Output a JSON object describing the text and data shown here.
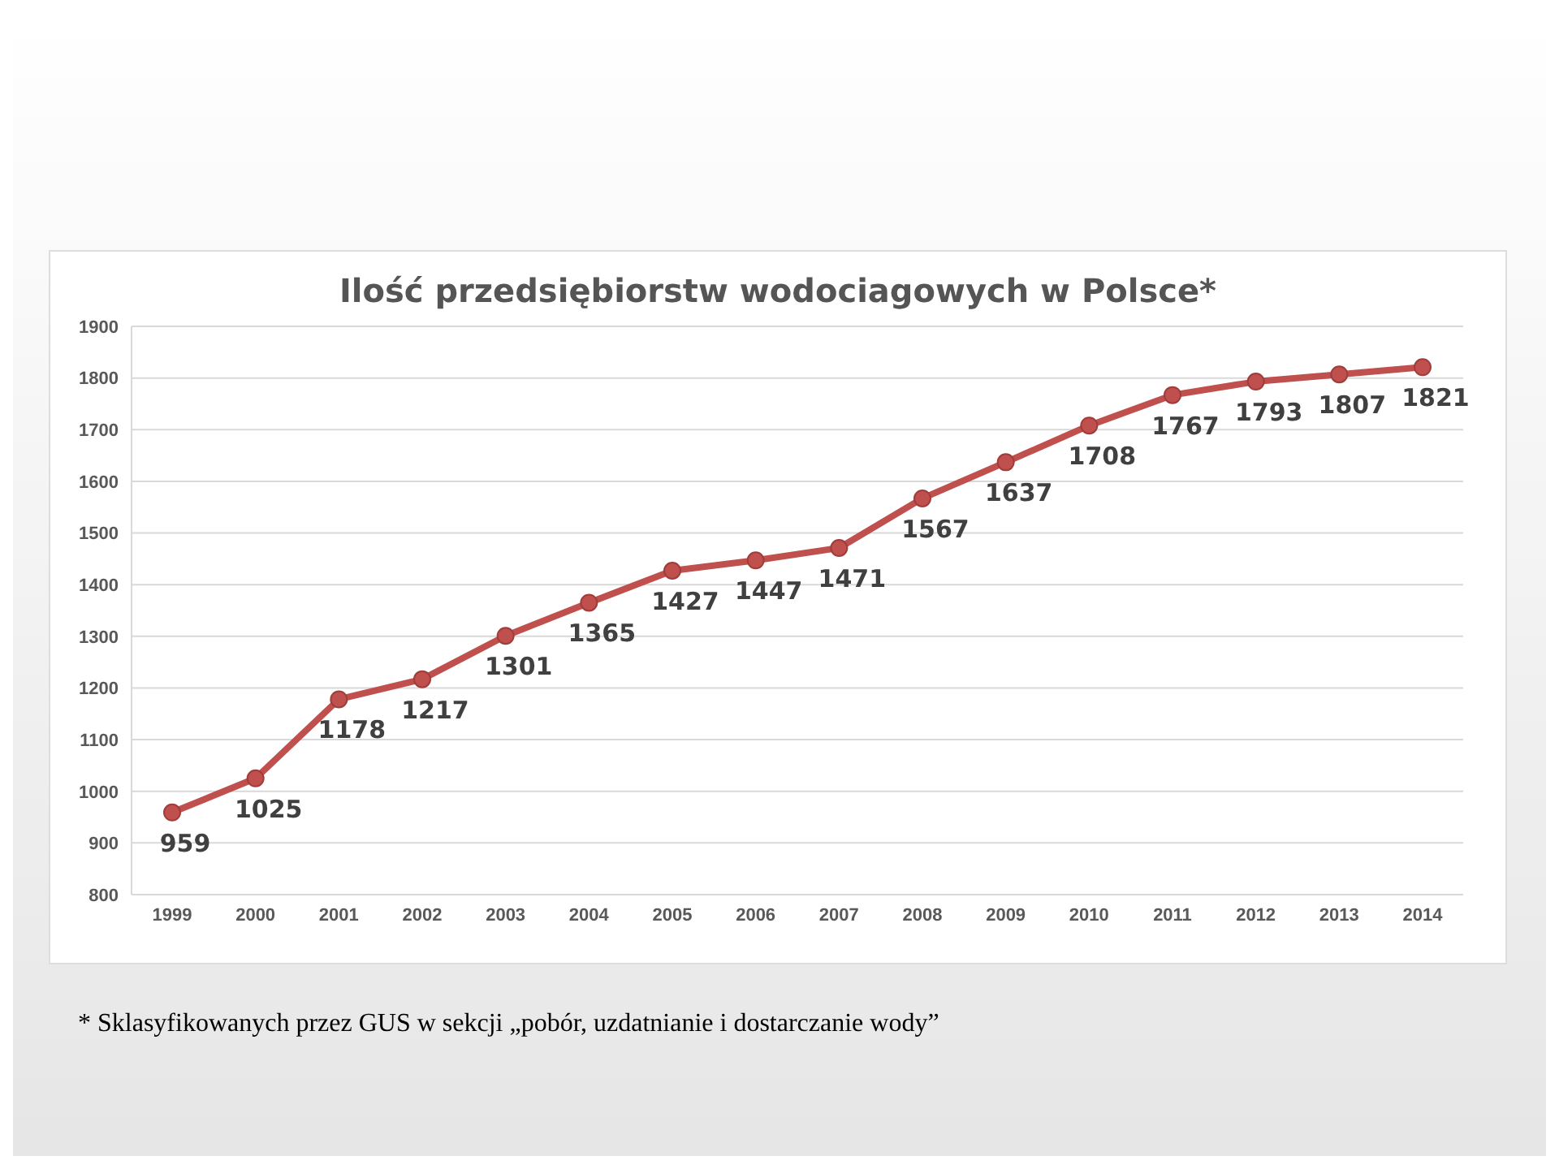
{
  "chart_data": {
    "type": "line",
    "title": "Ilość przedsiębiorstw wodociagowych w Polsce*",
    "categories": [
      "1999",
      "2000",
      "2001",
      "2002",
      "2003",
      "2004",
      "2005",
      "2006",
      "2007",
      "2008",
      "2009",
      "2010",
      "2011",
      "2012",
      "2013",
      "2014"
    ],
    "series": [
      {
        "color": "#c0504d",
        "values": [
          959,
          1025,
          1178,
          1217,
          1301,
          1365,
          1427,
          1447,
          1471,
          1567,
          1637,
          1708,
          1767,
          1793,
          1807,
          1821
        ]
      }
    ],
    "ylim": [
      800,
      1900
    ],
    "yticks": [
      800,
      900,
      1000,
      1100,
      1200,
      1300,
      1400,
      1500,
      1600,
      1700,
      1800,
      1900
    ],
    "grid": "y",
    "marker": "circle",
    "line_style": "solid",
    "data_labels": true,
    "annotations": [
      "* Sklasyfikowanych przez GUS w sekcji „pobór, uzdatnianie i dostarczanie wody”"
    ]
  }
}
